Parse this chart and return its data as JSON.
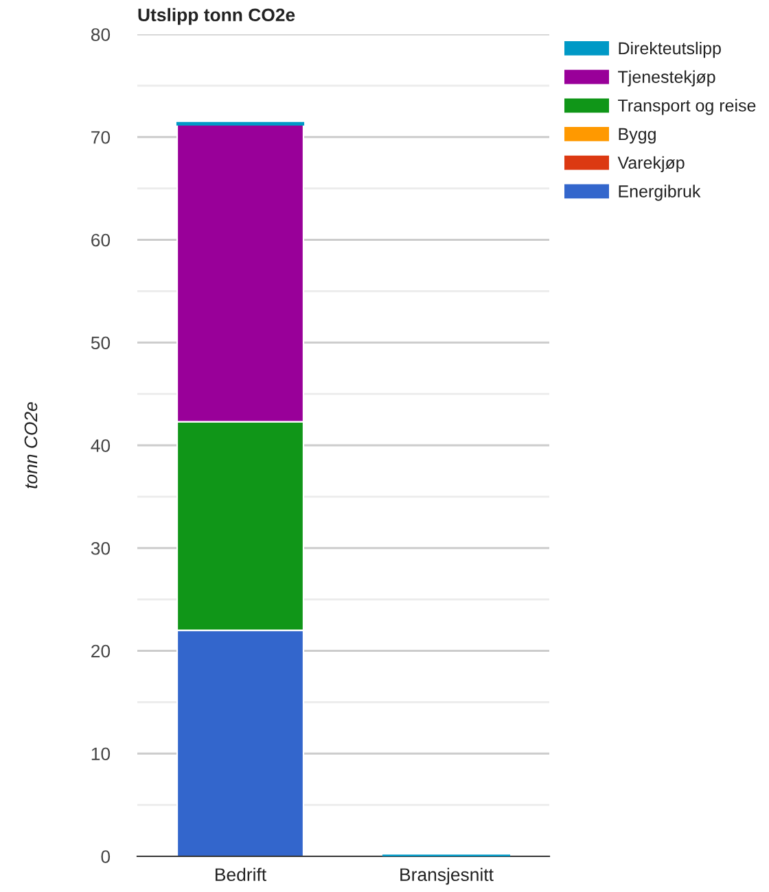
{
  "chart_data": {
    "type": "bar",
    "title": "Utslipp tonn CO2e",
    "ylabel": "tonn CO2e",
    "stacked": true,
    "categories": [
      "Bedrift",
      "Bransjesnitt"
    ],
    "series": [
      {
        "name": "Energibruk",
        "color": "#3366cc",
        "values": [
          22.0,
          0
        ]
      },
      {
        "name": "Varekjøp",
        "color": "#dc3912",
        "values": [
          0,
          0
        ]
      },
      {
        "name": "Bygg",
        "color": "#ff9900",
        "values": [
          0,
          0
        ]
      },
      {
        "name": "Transport og reise",
        "color": "#109618",
        "values": [
          20.3,
          0
        ]
      },
      {
        "name": "Tjenestekjøp",
        "color": "#990099",
        "values": [
          28.9,
          0
        ]
      },
      {
        "name": "Direkteutslipp",
        "color": "#0099c6",
        "values": [
          0.2,
          0.1
        ]
      }
    ],
    "ylim": [
      0,
      80
    ],
    "yticks": [
      0,
      {
        "value": 5,
        "label": null
      },
      10,
      {
        "value": 15,
        "label": null
      },
      20,
      {
        "value": 25,
        "label": null
      },
      30,
      {
        "value": 35,
        "label": null
      },
      40,
      {
        "value": 45,
        "label": null
      },
      50,
      {
        "value": 55,
        "label": null
      },
      60,
      {
        "value": 65,
        "label": null
      },
      70,
      {
        "value": 75,
        "label": null
      },
      80
    ],
    "grid": "y",
    "legend": "top right"
  }
}
